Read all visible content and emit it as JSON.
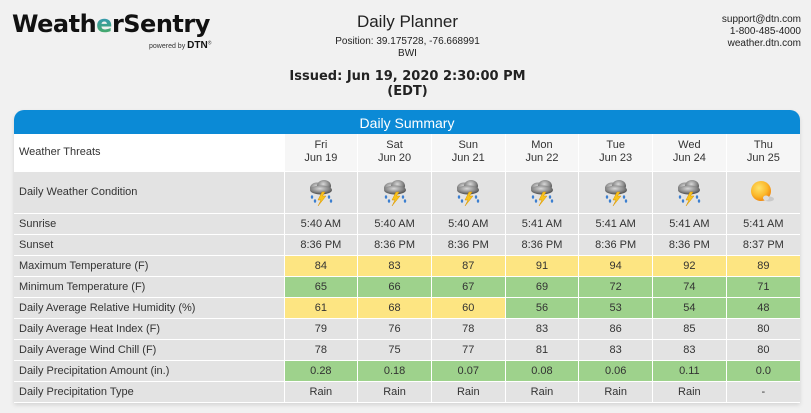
{
  "brand": {
    "name_prefix": "Weath",
    "name_accent": "e",
    "name_suffix": "rSentry",
    "powered_by": "powered by",
    "powered_brand": "DTN",
    "registered": "®"
  },
  "header": {
    "title": "Daily Planner",
    "position": "Position: 39.175728, -76.668991",
    "station": "BWI",
    "issued": "Issued: Jun 19, 2020 2:30:00 PM (EDT)"
  },
  "contact": {
    "email": "support@dtn.com",
    "phone": "1-800-485-4000",
    "website": "weather.dtn.com"
  },
  "colors": {
    "header_blue": "#0b8ad6",
    "yellow": "#fde582",
    "green": "#9ed28c",
    "row_gray": "#e3e3e3"
  },
  "summary": {
    "title": "Daily Summary",
    "threats_label": "Weather Threats",
    "days": [
      {
        "dow": "Fri",
        "date": "Jun 19",
        "icon": "thunderstorm-rain-icon"
      },
      {
        "dow": "Sat",
        "date": "Jun 20",
        "icon": "thunderstorm-rain-icon"
      },
      {
        "dow": "Sun",
        "date": "Jun 21",
        "icon": "thunderstorm-rain-icon"
      },
      {
        "dow": "Mon",
        "date": "Jun 22",
        "icon": "thunderstorm-rain-icon"
      },
      {
        "dow": "Tue",
        "date": "Jun 23",
        "icon": "thunderstorm-rain-icon"
      },
      {
        "dow": "Wed",
        "date": "Jun 24",
        "icon": "thunderstorm-rain-icon"
      },
      {
        "dow": "Thu",
        "date": "Jun 25",
        "icon": "mostly-sunny-icon"
      }
    ],
    "condition_label": "Daily Weather Condition",
    "rows": [
      {
        "label": "Sunrise",
        "values": [
          "5:40 AM",
          "5:40 AM",
          "5:40 AM",
          "5:41 AM",
          "5:41 AM",
          "5:41 AM",
          "5:41 AM"
        ],
        "colors": [
          "",
          "",
          "",
          "",
          "",
          "",
          ""
        ]
      },
      {
        "label": "Sunset",
        "values": [
          "8:36 PM",
          "8:36 PM",
          "8:36 PM",
          "8:36 PM",
          "8:36 PM",
          "8:36 PM",
          "8:37 PM"
        ],
        "colors": [
          "",
          "",
          "",
          "",
          "",
          "",
          ""
        ]
      },
      {
        "label": "Maximum Temperature (F)",
        "values": [
          "84",
          "83",
          "87",
          "91",
          "94",
          "92",
          "89"
        ],
        "colors": [
          "yellow",
          "yellow",
          "yellow",
          "yellow",
          "yellow",
          "yellow",
          "yellow"
        ]
      },
      {
        "label": "Minimum Temperature (F)",
        "values": [
          "65",
          "66",
          "67",
          "69",
          "72",
          "74",
          "71"
        ],
        "colors": [
          "green",
          "green",
          "green",
          "green",
          "green",
          "green",
          "green"
        ]
      },
      {
        "label": "Daily Average Relative Humidity (%)",
        "values": [
          "61",
          "68",
          "60",
          "56",
          "53",
          "54",
          "48"
        ],
        "colors": [
          "yellow",
          "yellow",
          "yellow",
          "green",
          "green",
          "green",
          "green"
        ]
      },
      {
        "label": "Daily Average Heat Index (F)",
        "values": [
          "79",
          "76",
          "78",
          "83",
          "86",
          "85",
          "80"
        ],
        "colors": [
          "",
          "",
          "",
          "",
          "",
          "",
          ""
        ]
      },
      {
        "label": "Daily Average Wind Chill (F)",
        "values": [
          "78",
          "75",
          "77",
          "81",
          "83",
          "83",
          "80"
        ],
        "colors": [
          "",
          "",
          "",
          "",
          "",
          "",
          ""
        ]
      },
      {
        "label": "Daily Precipitation Amount (in.)",
        "values": [
          "0.28",
          "0.18",
          "0.07",
          "0.08",
          "0.06",
          "0.11",
          "0.0"
        ],
        "colors": [
          "green",
          "green",
          "green",
          "green",
          "green",
          "green",
          "green"
        ]
      },
      {
        "label": "Daily Precipitation Type",
        "values": [
          "Rain",
          "Rain",
          "Rain",
          "Rain",
          "Rain",
          "Rain",
          "-"
        ],
        "colors": [
          "",
          "",
          "",
          "",
          "",
          "",
          ""
        ]
      }
    ]
  }
}
